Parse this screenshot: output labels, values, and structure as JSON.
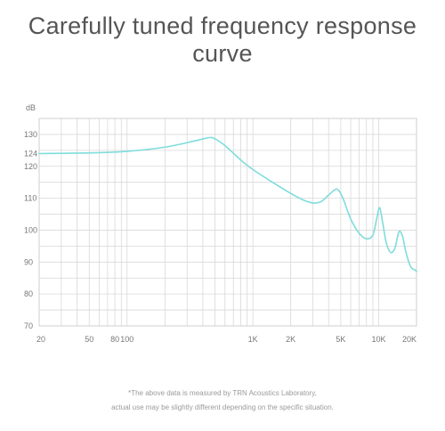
{
  "chart_data": {
    "type": "line",
    "title": "Carefully tuned frequency response curve",
    "ylabel": "dB",
    "xscale": "log",
    "xlim": [
      20,
      20000
    ],
    "ylim": [
      70,
      135
    ],
    "y_ticks": [
      70,
      80,
      90,
      100,
      110,
      120,
      124,
      130
    ],
    "x_ticks": [
      {
        "value": 20,
        "label": "20"
      },
      {
        "value": 50,
        "label": "50"
      },
      {
        "value": 80,
        "label": "80"
      },
      {
        "value": 100,
        "label": "100"
      },
      {
        "value": 1000,
        "label": "1K"
      },
      {
        "value": 2000,
        "label": "2K"
      },
      {
        "value": 5000,
        "label": "5K"
      },
      {
        "value": 10000,
        "label": "10K"
      },
      {
        "value": 20000,
        "label": "20K"
      }
    ],
    "grid": true,
    "line_color": "#7fdcdc",
    "series": [
      {
        "x": [
          20,
          50,
          100,
          200,
          350,
          450,
          500,
          600,
          800,
          1000,
          1500,
          2000,
          2500,
          3000,
          3500,
          4000,
          4500,
          4800,
          5200,
          6000,
          7000,
          8000,
          9000,
          9700,
          10200,
          10800,
          11500,
          12500,
          13500,
          14500,
          15500,
          16500,
          18000,
          19500,
          20000
        ],
        "y": [
          124,
          124.2,
          124.7,
          126,
          128,
          129,
          128.6,
          126.5,
          122,
          119,
          114.5,
          111.5,
          109.5,
          108.5,
          109,
          111,
          112.7,
          112.5,
          110,
          103.5,
          99,
          97.3,
          98.5,
          104,
          107,
          102,
          96,
          93,
          94.5,
          99.5,
          98,
          93,
          88.5,
          87.5,
          87
        ]
      }
    ]
  },
  "notes": [
    "*The above data is measured by TRN Acoustics Laboratory,",
    "actual use may be slightly different depending on the specific situation."
  ]
}
